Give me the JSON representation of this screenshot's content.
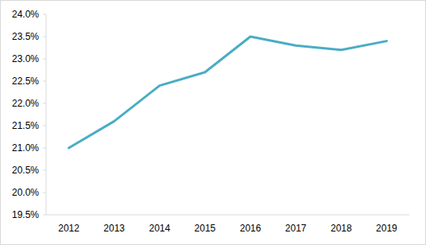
{
  "chart_data": {
    "type": "line",
    "categories": [
      "2012",
      "2013",
      "2014",
      "2015",
      "2016",
      "2017",
      "2018",
      "2019"
    ],
    "values": [
      21.0,
      21.6,
      22.4,
      22.7,
      23.5,
      23.3,
      23.2,
      23.4
    ],
    "color": "#4bacc6",
    "ylim": [
      19.5,
      24.0
    ],
    "yticks": [
      {
        "value": 19.5,
        "label": "19.5%"
      },
      {
        "value": 20.0,
        "label": "20.0%"
      },
      {
        "value": 20.5,
        "label": "20.5%"
      },
      {
        "value": 21.0,
        "label": "21.0%"
      },
      {
        "value": 21.5,
        "label": "21.5%"
      },
      {
        "value": 22.0,
        "label": "22.0%"
      },
      {
        "value": 22.5,
        "label": "22.5%"
      },
      {
        "value": 23.0,
        "label": "23.0%"
      },
      {
        "value": 23.5,
        "label": "23.5%"
      },
      {
        "value": 24.0,
        "label": "24.0%"
      }
    ],
    "grid": false
  }
}
